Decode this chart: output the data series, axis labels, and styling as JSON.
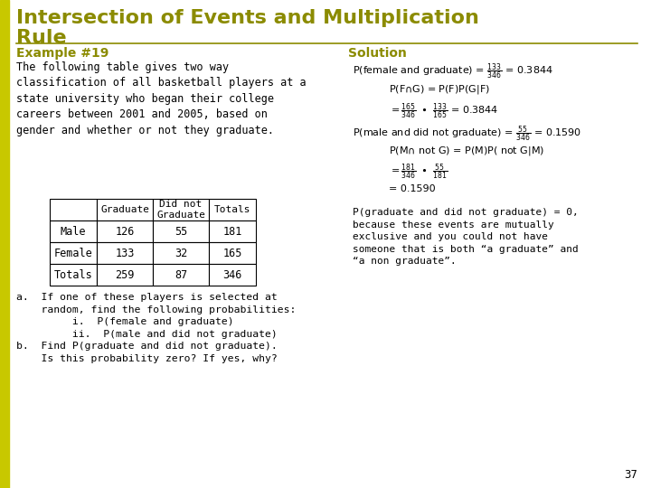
{
  "title_line1": "Intersection of Events and Multiplication",
  "title_line2": "Rule",
  "title_color": "#8b8b00",
  "bg_color": "#ffffff",
  "slide_number": "37",
  "example_label": "Example #19",
  "example_color": "#8b8b00",
  "body_text": "The following table gives two way\nclassification of all basketball players at a\nstate university who began their college\ncareers between 2001 and 2005, based on\ngender and whether or not they graduate.",
  "table_headers": [
    "",
    "Graduate",
    "Did not\nGraduate",
    "Totals"
  ],
  "table_rows": [
    [
      "Male",
      "126",
      "55",
      "181"
    ],
    [
      "Female",
      "133",
      "32",
      "165"
    ],
    [
      "Totals",
      "259",
      "87",
      "346"
    ]
  ],
  "questions": "a.  If one of these players is selected at\n    random, find the following probabilities:\n         i.  P(female and graduate)\n         ii.  P(male and did not graduate)\nb.  Find P(graduate and did not graduate).\n    Is this probability zero? If yes, why?",
  "solution_label": "Solution",
  "solution_color": "#8b8b00",
  "divider_color": "#8b8b00",
  "left_bar_color": "#c8c800",
  "left_bar_width": 10
}
